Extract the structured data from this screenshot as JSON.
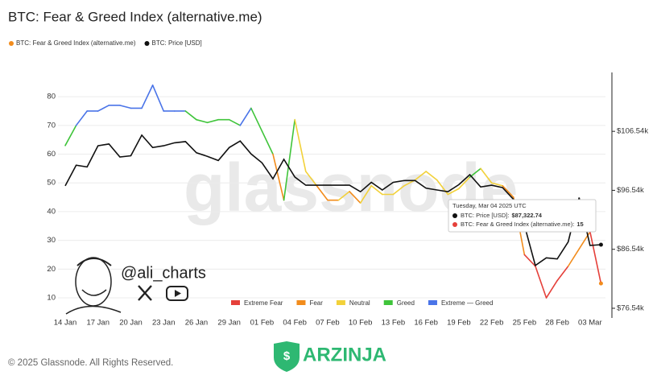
{
  "title": "BTC: Fear & Greed Index (alternative.me)",
  "chart_data": {
    "type": "line",
    "categories": [
      "14 Jan",
      null,
      null,
      "17 Jan",
      null,
      null,
      "20 Jan",
      null,
      null,
      "23 Jan",
      null,
      null,
      "26 Jan",
      null,
      null,
      "29 Jan",
      null,
      null,
      "01 Feb",
      null,
      null,
      "04 Feb",
      null,
      null,
      "07 Feb",
      null,
      null,
      "10 Feb",
      null,
      null,
      "13 Feb",
      null,
      null,
      "16 Feb",
      null,
      null,
      "19 Feb",
      null,
      null,
      "22 Feb",
      null,
      null,
      "25 Feb",
      null,
      null,
      "28 Feb",
      null,
      null,
      "03 Mar",
      null
    ],
    "series": [
      {
        "name": "BTC: Fear & Greed Index (alternative.me)",
        "color": "#f28c1c",
        "values": [
          63,
          70,
          75,
          75,
          77,
          77,
          76,
          76,
          84,
          75,
          75,
          75,
          72,
          71,
          72,
          72,
          70,
          76,
          68,
          60,
          44,
          72,
          54,
          49,
          44,
          44,
          47,
          43,
          49,
          46,
          46,
          49,
          51,
          54,
          51,
          46,
          48,
          52,
          55,
          50,
          49,
          45,
          25,
          21,
          10,
          16,
          21,
          27,
          33,
          15
        ],
        "point_colors": [
          "#3fc43a",
          "#3fc43a",
          "#4a74e8",
          "#4a74e8",
          "#4a74e8",
          "#4a74e8",
          "#4a74e8",
          "#4a74e8",
          "#4a74e8",
          "#4a74e8",
          "#4a74e8",
          "#4a74e8",
          "#3fc43a",
          "#3fc43a",
          "#3fc43a",
          "#3fc43a",
          "#3fc43a",
          "#4a74e8",
          "#3fc43a",
          "#3fc43a",
          "#f28c1c",
          "#3fc43a",
          "#f2d13a",
          "#f2d13a",
          "#f28c1c",
          "#f28c1c",
          "#f2d13a",
          "#f28c1c",
          "#f2d13a",
          "#f2d13a",
          "#f2d13a",
          "#f2d13a",
          "#f2d13a",
          "#f2d13a",
          "#f2d13a",
          "#f2d13a",
          "#f2d13a",
          "#f2d13a",
          "#3fc43a",
          "#f2d13a",
          "#f2d13a",
          "#f28c1c",
          "#f28c1c",
          "#e5403a",
          "#e5403a",
          "#e5403a",
          "#e5403a",
          "#f28c1c",
          "#f28c1c",
          "#e5403a"
        ]
      },
      {
        "name": "BTC: Price [USD]",
        "color": "#111111",
        "axis": "y2",
        "values": [
          97300,
          100800,
          100500,
          104100,
          104400,
          102200,
          102400,
          105900,
          103800,
          104100,
          104600,
          104800,
          102900,
          102300,
          101600,
          103800,
          104900,
          102700,
          101200,
          98500,
          101800,
          98800,
          97400,
          97400,
          97400,
          97400,
          97400,
          96300,
          97900,
          96600,
          97900,
          98200,
          98200,
          96900,
          96600,
          96300,
          97500,
          99200,
          97100,
          97400,
          97000,
          95000,
          90600,
          83800,
          85100,
          84900,
          87800,
          95300,
          87200,
          87322.74
        ]
      }
    ],
    "ylim": [
      3,
      89
    ],
    "yticks": [
      10,
      20,
      30,
      40,
      50,
      60,
      70,
      80
    ],
    "y2lim": [
      74900,
      116800
    ],
    "y2ticks": [
      {
        "value": 76540,
        "label": "$76.54k"
      },
      {
        "value": 86540,
        "label": "$86.54k"
      },
      {
        "value": 96540,
        "label": "$96.54k"
      },
      {
        "value": 106540,
        "label": "$106.54k"
      }
    ],
    "grid": true,
    "zones": [
      {
        "name": "Extreme Fear",
        "color": "#e5403a"
      },
      {
        "name": "Fear",
        "color": "#f28c1c"
      },
      {
        "name": "Neutral",
        "color": "#f2d13a"
      },
      {
        "name": "Greed",
        "color": "#3fc43a"
      },
      {
        "name": "Extreme — Greed",
        "color": "#4a74e8"
      }
    ],
    "watermark": "glassnode",
    "tooltip": {
      "date": "Tuesday, Mar 04 2025 UTC",
      "rows": [
        {
          "label": "BTC: Price [USD]:",
          "value_label": "$87,322.74",
          "color": "#111111"
        },
        {
          "label": "BTC: Fear & Greed Index (alternative.me):",
          "color": "#e5403a"
        }
      ]
    }
  },
  "overlay": {
    "handle": "@ali_charts"
  },
  "footer": {
    "copyright": "© 2025 Glassnode. All Rights Reserved.",
    "brand": "ARZINJA"
  }
}
